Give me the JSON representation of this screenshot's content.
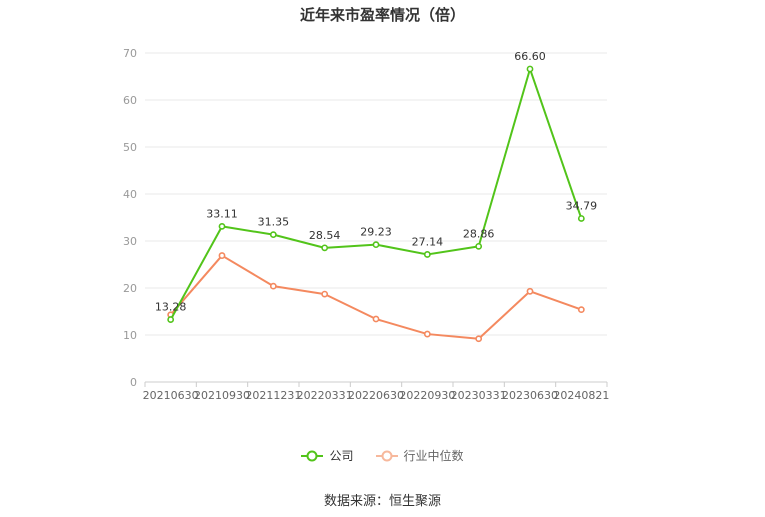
{
  "chart_data": {
    "type": "line",
    "title": "近年来市盈率情况（倍）",
    "categories": [
      "20210630",
      "20210930",
      "20211231",
      "20220331",
      "20220630",
      "20220930",
      "20230331",
      "20230630",
      "20240821"
    ],
    "series": [
      {
        "name": "公司",
        "color": "#52c41a",
        "values": [
          13.28,
          33.11,
          31.35,
          28.54,
          29.23,
          27.14,
          28.86,
          66.6,
          34.79
        ],
        "labels": [
          "13.28",
          "33.11",
          "31.35",
          "28.54",
          "29.23",
          "27.14",
          "28.86",
          "66.60",
          "34.79"
        ]
      },
      {
        "name": "行业中位数",
        "color": "#f4895f",
        "values": [
          14.3,
          26.9,
          20.4,
          18.7,
          13.4,
          10.2,
          9.2,
          19.3,
          15.4
        ]
      }
    ],
    "ylim": [
      0,
      70
    ],
    "yticks": [
      0,
      10,
      20,
      30,
      40,
      50,
      60,
      70
    ],
    "grid": true,
    "legend_position": "bottom"
  },
  "source": "数据来源：恒生聚源"
}
